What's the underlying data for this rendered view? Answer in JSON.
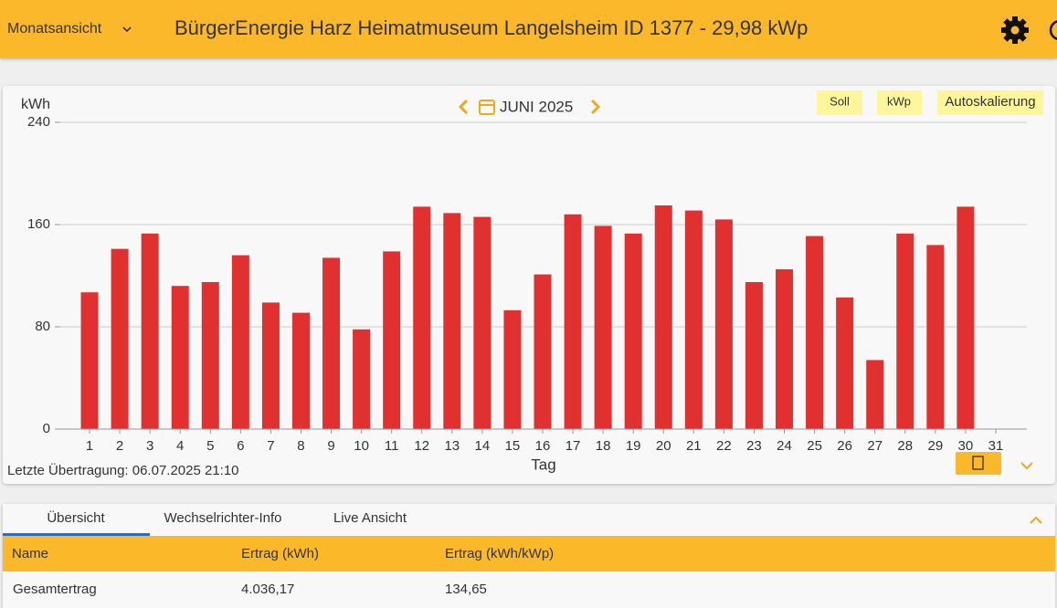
{
  "header": {
    "view_selector": "Monatsansicht",
    "title": "BürgerEnergie Harz Heimatmuseum Langelsheim ID 1377 - 29,98 kWp"
  },
  "chart_data": {
    "type": "bar",
    "period": "JUNI 2025",
    "y_label": "kWh",
    "x_label": "Tag",
    "buttons": [
      "Soll",
      "kWp",
      "Autoskalierung"
    ],
    "last_transfer": "Letzte Übertragung: 06.07.2025 21:10",
    "categories": [
      "1",
      "2",
      "3",
      "4",
      "5",
      "6",
      "7",
      "8",
      "9",
      "10",
      "11",
      "12",
      "13",
      "14",
      "15",
      "16",
      "17",
      "18",
      "19",
      "20",
      "21",
      "22",
      "23",
      "24",
      "25",
      "26",
      "27",
      "28",
      "29",
      "30",
      "31"
    ],
    "values": [
      107,
      141,
      153,
      112,
      115,
      136,
      99,
      91,
      134,
      78,
      139,
      174,
      169,
      166,
      93,
      121,
      168,
      159,
      153,
      175,
      171,
      164,
      115,
      125,
      151,
      103,
      54,
      153,
      144,
      174,
      null
    ],
    "color": "#e03030",
    "ylim": [
      0,
      240
    ],
    "yticks": [
      0,
      80,
      160,
      240
    ],
    "grid": true
  },
  "tabs": [
    "Übersicht",
    "Wechselrichter-Info",
    "Live Ansicht"
  ],
  "table": {
    "columns": [
      "Name",
      "Ertrag (kWh)",
      "Ertrag (kWh/kWp)"
    ],
    "rows": [
      [
        "Gesamtertrag",
        "4.036,17",
        "134,65"
      ]
    ]
  }
}
